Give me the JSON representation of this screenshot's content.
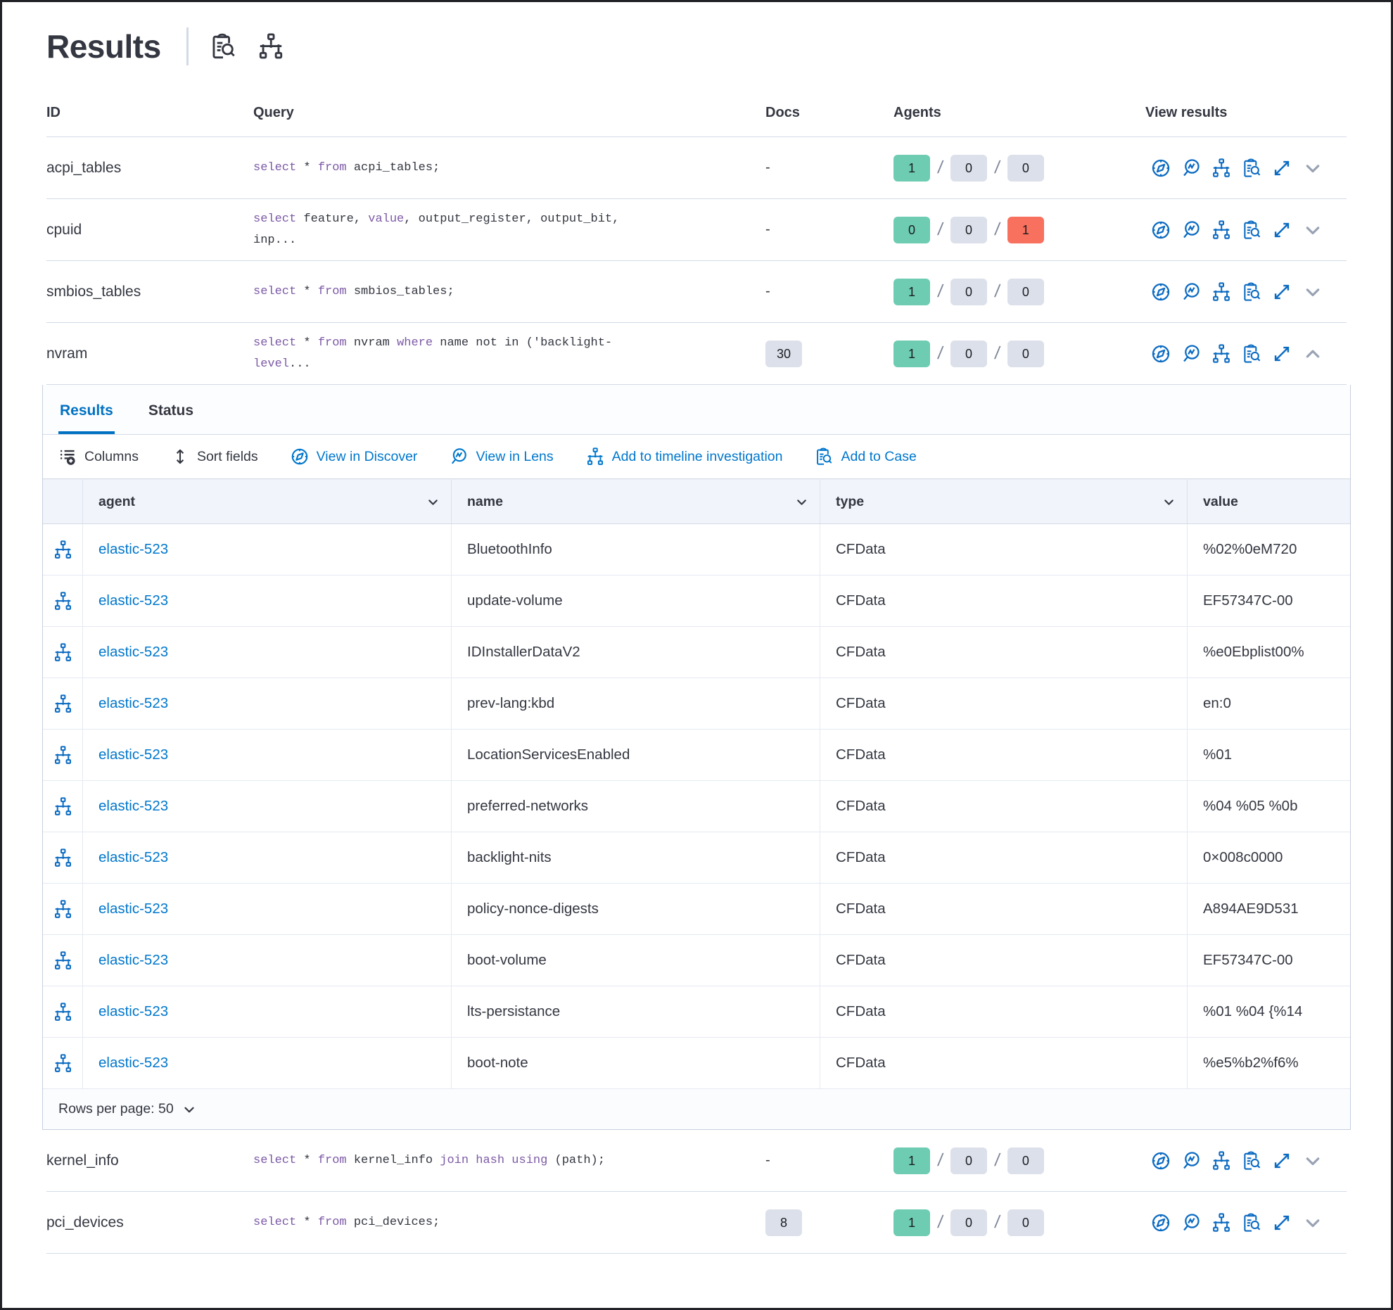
{
  "colors": {
    "accent": "#0077CC",
    "tab_active": "#0071C2",
    "keyword": "#7C5AA6",
    "success_badge": "#6DCCB1",
    "danger_badge": "#F8705E",
    "neutral_badge": "#DCE0EA",
    "border": "#D3DAE6",
    "text": "#343741",
    "muted": "#98A2B3"
  },
  "header": {
    "title": "Results",
    "icons": [
      "inspect-icon",
      "timeline-icon"
    ]
  },
  "queries_table": {
    "columns": {
      "id": "ID",
      "query": "Query",
      "docs": "Docs",
      "agents": "Agents",
      "view_results": "View results"
    },
    "view_icons": [
      "compass",
      "lens",
      "timeline",
      "inspect",
      "expand"
    ],
    "rows": [
      {
        "id": "acpi_tables",
        "query": [
          {
            "t": "select",
            "kw": true
          },
          {
            "t": " * "
          },
          {
            "t": "from",
            "kw": true
          },
          {
            "t": " acpi_tables;"
          }
        ],
        "docs": "-",
        "agents": [
          {
            "v": "1",
            "c": "green"
          },
          {
            "v": "0",
            "c": "gray"
          },
          {
            "v": "0",
            "c": "gray"
          }
        ],
        "expanded": false
      },
      {
        "id": "cpuid",
        "query": [
          {
            "t": "select",
            "kw": true
          },
          {
            "t": " feature, "
          },
          {
            "t": "value",
            "kw": true
          },
          {
            "t": ", output_register, output_bit, inp..."
          }
        ],
        "docs": "-",
        "agents": [
          {
            "v": "0",
            "c": "green"
          },
          {
            "v": "0",
            "c": "gray"
          },
          {
            "v": "1",
            "c": "red"
          }
        ],
        "expanded": false
      },
      {
        "id": "smbios_tables",
        "query": [
          {
            "t": "select",
            "kw": true
          },
          {
            "t": " * "
          },
          {
            "t": "from",
            "kw": true
          },
          {
            "t": " smbios_tables;"
          }
        ],
        "docs": "-",
        "agents": [
          {
            "v": "1",
            "c": "green"
          },
          {
            "v": "0",
            "c": "gray"
          },
          {
            "v": "0",
            "c": "gray"
          }
        ],
        "expanded": false
      },
      {
        "id": "nvram",
        "query": [
          {
            "t": "select",
            "kw": true
          },
          {
            "t": " * "
          },
          {
            "t": "from",
            "kw": true
          },
          {
            "t": " nvram "
          },
          {
            "t": "where",
            "kw": true
          },
          {
            "t": " name not in ('backlight-"
          },
          {
            "t": "level",
            "kw": true
          },
          {
            "t": "..."
          }
        ],
        "docs_badge": "30",
        "agents": [
          {
            "v": "1",
            "c": "green"
          },
          {
            "v": "0",
            "c": "gray"
          },
          {
            "v": "0",
            "c": "gray"
          }
        ],
        "expanded": true
      },
      {
        "id": "kernel_info",
        "query": [
          {
            "t": "select",
            "kw": true
          },
          {
            "t": " * "
          },
          {
            "t": "from",
            "kw": true
          },
          {
            "t": " kernel_info "
          },
          {
            "t": "join",
            "kw": true
          },
          {
            "t": " "
          },
          {
            "t": "hash",
            "kw": true
          },
          {
            "t": " "
          },
          {
            "t": "using",
            "kw": true
          },
          {
            "t": " (path);"
          }
        ],
        "docs": "-",
        "agents": [
          {
            "v": "1",
            "c": "green"
          },
          {
            "v": "0",
            "c": "gray"
          },
          {
            "v": "0",
            "c": "gray"
          }
        ],
        "expanded": false
      },
      {
        "id": "pci_devices",
        "query": [
          {
            "t": "select",
            "kw": true
          },
          {
            "t": " * "
          },
          {
            "t": "from",
            "kw": true
          },
          {
            "t": " pci_devices;"
          }
        ],
        "docs_badge": "8",
        "agents": [
          {
            "v": "1",
            "c": "green"
          },
          {
            "v": "0",
            "c": "gray"
          },
          {
            "v": "0",
            "c": "gray"
          }
        ],
        "expanded": false
      }
    ]
  },
  "expanded_panel": {
    "tabs": [
      {
        "label": "Results",
        "active": true
      },
      {
        "label": "Status",
        "active": false
      }
    ],
    "toolbar": [
      {
        "label": "Columns",
        "icon": "columns",
        "style": "dark"
      },
      {
        "label": "Sort fields",
        "icon": "sort-fields",
        "style": "dark"
      },
      {
        "label": "View in Discover",
        "icon": "compass",
        "style": "blue"
      },
      {
        "label": "View in Lens",
        "icon": "lens",
        "style": "blue"
      },
      {
        "label": "Add to timeline investigation",
        "icon": "timeline",
        "style": "blue"
      },
      {
        "label": "Add to Case",
        "icon": "inspect",
        "style": "blue"
      }
    ],
    "grid": {
      "columns": [
        "agent",
        "name",
        "type",
        "value"
      ],
      "row_icon": "timeline",
      "rows": [
        {
          "agent": "elastic-523",
          "name": "BluetoothInfo",
          "type": "CFData",
          "value": "%02%0eM720"
        },
        {
          "agent": "elastic-523",
          "name": "update-volume",
          "type": "CFData",
          "value": "EF57347C-00"
        },
        {
          "agent": "elastic-523",
          "name": "IDInstallerDataV2",
          "type": "CFData",
          "value": "%e0Ebplist00%"
        },
        {
          "agent": "elastic-523",
          "name": "prev-lang:kbd",
          "type": "CFData",
          "value": "en:0"
        },
        {
          "agent": "elastic-523",
          "name": "LocationServicesEnabled",
          "type": "CFData",
          "value": "%01"
        },
        {
          "agent": "elastic-523",
          "name": "preferred-networks",
          "type": "CFData",
          "value": "%04 %05 %0b"
        },
        {
          "agent": "elastic-523",
          "name": "backlight-nits",
          "type": "CFData",
          "value": "0×008c0000"
        },
        {
          "agent": "elastic-523",
          "name": "policy-nonce-digests",
          "type": "CFData",
          "value": "A894AE9D531"
        },
        {
          "agent": "elastic-523",
          "name": "boot-volume",
          "type": "CFData",
          "value": "EF57347C-00"
        },
        {
          "agent": "elastic-523",
          "name": "lts-persistance",
          "type": "CFData",
          "value": "%01 %04 {%14"
        },
        {
          "agent": "elastic-523",
          "name": "boot-note",
          "type": "CFData",
          "value": "%e5%b2%f6%"
        }
      ]
    },
    "footer": {
      "rows_per_page": "Rows per page: 50"
    }
  }
}
